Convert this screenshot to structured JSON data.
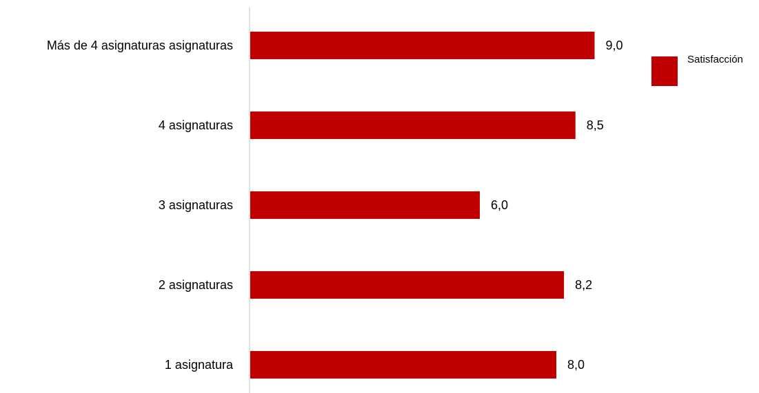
{
  "chart_data": {
    "type": "bar",
    "orientation": "horizontal",
    "categories": [
      "Más  de 4 asignaturas asignaturas",
      "4 asignaturas",
      "3 asignaturas",
      "2 asignaturas",
      "1 asignatura"
    ],
    "series": [
      {
        "name": "Satisfacción",
        "values": [
          9.0,
          8.5,
          6.0,
          8.2,
          8.0
        ],
        "labels": [
          "9,0",
          "8,5",
          "6,0",
          "8,2",
          "8,0"
        ],
        "color": "#C00000"
      }
    ],
    "title": "",
    "xlabel": "",
    "ylabel": "",
    "xlim": [
      0,
      10
    ],
    "grid": false,
    "legend": "top-right",
    "axis_color": "#D9D9D9"
  }
}
